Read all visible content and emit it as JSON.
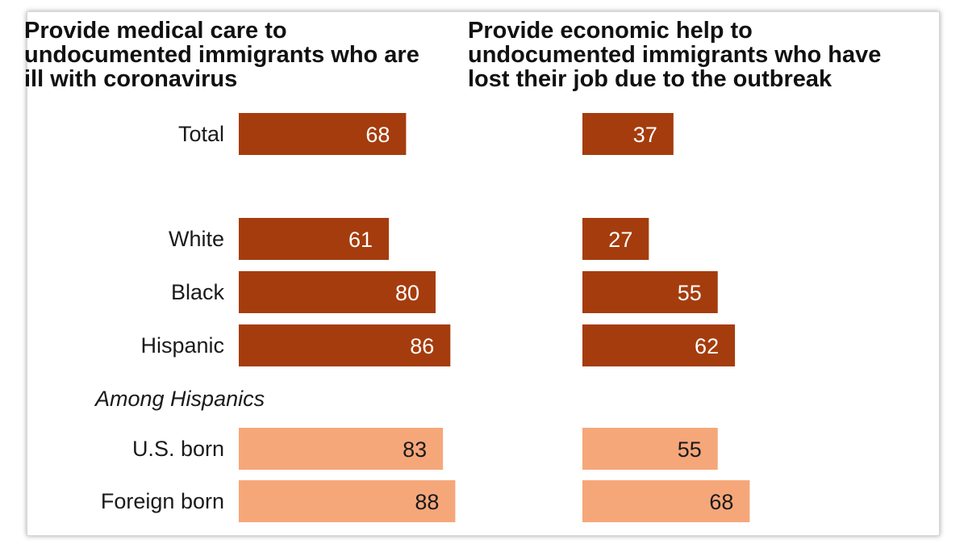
{
  "chart_data": {
    "type": "bar",
    "orientation": "horizontal",
    "categories": [
      "Total",
      "White",
      "Black",
      "Hispanic",
      "U.S. born",
      "Foreign born"
    ],
    "group_label": "Among Hispanics",
    "panels": [
      {
        "title": "Provide medical care to\nundocumented immigrants who are\nill with coronavirus",
        "values": [
          68,
          61,
          80,
          86,
          83,
          88
        ]
      },
      {
        "title": "Provide economic help to\nundocumented immigrants who have\nlost their job due to the outbreak",
        "values": [
          37,
          27,
          55,
          62,
          55,
          68
        ]
      }
    ],
    "colors": {
      "dark": "#a53c0d",
      "light": "#f6a77a",
      "dark_text": "#ffffff",
      "light_text": "#1a1a1a"
    },
    "xlim": [
      0,
      100
    ],
    "grid": false,
    "legend": "none"
  }
}
